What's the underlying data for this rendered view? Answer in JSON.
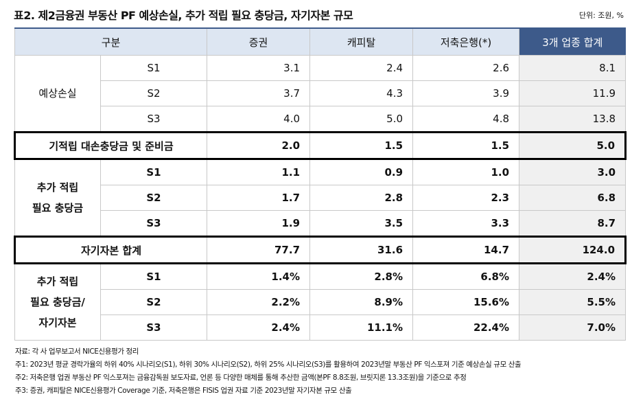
{
  "title": "표2. 제2금융권 부동산 PF 예상손실, 추가 적립 필요 충당금, 자기자본 규모",
  "unit": "단위: 조원, %",
  "table": {
    "header": [
      "구분",
      "증권",
      "캐피탈",
      "저축은행(*)",
      "3개 업종 합계"
    ],
    "sections": [
      {
        "label": [
          "예상손실"
        ],
        "rows": [
          {
            "name": "S1",
            "values": [
              "3.1",
              "2.4",
              "2.6",
              "8.1"
            ]
          },
          {
            "name": "S2",
            "values": [
              "3.7",
              "4.3",
              "3.9",
              "11.9"
            ]
          },
          {
            "name": "S3",
            "values": [
              "4.0",
              "5.0",
              "4.8",
              "13.8"
            ]
          }
        ]
      },
      {
        "label": "기적립 대손충당금 및 준비금",
        "values": [
          "2.0",
          "1.5",
          "1.5",
          "5.0"
        ]
      },
      {
        "label": [
          "추가 적립",
          "필요 충당금"
        ],
        "rows": [
          {
            "name": "S1",
            "values": [
              "1.1",
              "0.9",
              "1.0",
              "3.0"
            ]
          },
          {
            "name": "S2",
            "values": [
              "1.7",
              "2.8",
              "2.3",
              "6.8"
            ]
          },
          {
            "name": "S3",
            "values": [
              "1.9",
              "3.5",
              "3.3",
              "8.7"
            ]
          }
        ]
      },
      {
        "label": "자기자본 합계",
        "values": [
          "77.7",
          "31.6",
          "14.7",
          "124.0"
        ]
      },
      {
        "label": [
          "추가 적립",
          "필요 충당금/",
          "자기자본"
        ],
        "rows": [
          {
            "name": "S1",
            "values": [
              "1.4%",
              "2.8%",
              "6.8%",
              "2.4%"
            ]
          },
          {
            "name": "S2",
            "values": [
              "2.2%",
              "8.9%",
              "15.6%",
              "5.5%"
            ]
          },
          {
            "name": "S3",
            "values": [
              "2.4%",
              "11.1%",
              "22.4%",
              "7.0%"
            ]
          }
        ]
      }
    ]
  },
  "notes": [
    "자료: 각 사 업무보고서 NICE신용평가 정리",
    "주1: 2023년 평균 경락가율의 하위 40% 시나리오(S1), 하위 30% 시나리오(S2), 하위 25% 시나리오(S3)를 활용하여 2023년말 부동산 PF 익스포져 기준 예상손실 규모 산출",
    "주2: 저축은행 업권 부동산 PF 익스포져는 금융감독원 보도자료, 언론 등 다양한 매체를 통해 추산한 금액(본PF 8.8조원, 브릿지론 13.3조원)을 기준으로 추정",
    "주3: 증권, 캐피탈은 NICE신용평가 Coverage 기준, 저축은행은 FISIS 업권 자료 기준 2023년말 자기자본 규모 산출"
  ]
}
